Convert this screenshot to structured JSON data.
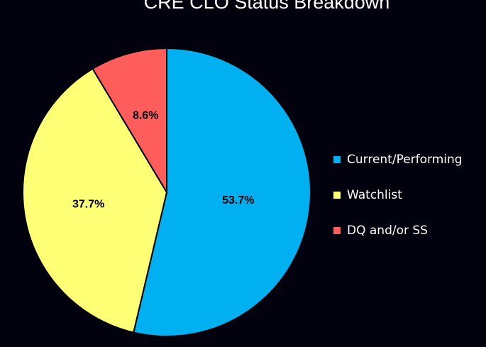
{
  "chart_data": {
    "type": "pie",
    "title": "CRE CLO Status Breakdown",
    "categories": [
      "Current/Performing",
      "Watchlist",
      "DQ and/or SS"
    ],
    "values": [
      53.7,
      37.7,
      8.6
    ],
    "labels": [
      "53.7%",
      "37.7%",
      "8.6%"
    ],
    "colors": [
      "#00b0f0",
      "#ffff75",
      "#ff5c5c"
    ],
    "legend_position": "right"
  }
}
